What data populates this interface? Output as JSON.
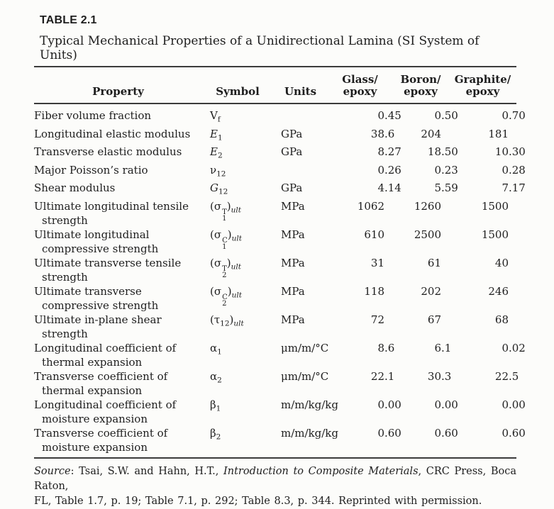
{
  "table_label": "TABLE 2.1",
  "table_title": "Typical Mechanical Properties of a Unidirectional Lamina (SI System of Units)",
  "columns": {
    "property": "Property",
    "symbol": "Symbol",
    "units": "Units",
    "materials": [
      [
        "Glass/",
        "epoxy"
      ],
      [
        "Boron/",
        "epoxy"
      ],
      [
        "Graphite/",
        "epoxy"
      ]
    ]
  },
  "rows": [
    {
      "property": [
        "Fiber volume fraction"
      ],
      "symbol": {
        "base": "V",
        "sub": "f"
      },
      "units": "",
      "values": [
        "0.45",
        "0.50",
        "0.70"
      ]
    },
    {
      "property": [
        "Longitudinal elastic modulus"
      ],
      "symbol": {
        "base": "E",
        "italic": true,
        "sub": "1"
      },
      "units": "GPa",
      "values": [
        "38.6",
        "204",
        "181"
      ]
    },
    {
      "property": [
        "Transverse elastic modulus"
      ],
      "symbol": {
        "base": "E",
        "italic": true,
        "sub": "2"
      },
      "units": "GPa",
      "values": [
        "8.27",
        "18.50",
        "10.30"
      ]
    },
    {
      "property": [
        "Major Poisson’s ratio"
      ],
      "symbol": {
        "base": "ν",
        "sub": "12"
      },
      "units": "",
      "values": [
        "0.26",
        "0.23",
        "0.28"
      ]
    },
    {
      "property": [
        "Shear modulus"
      ],
      "symbol": {
        "base": "G",
        "italic": true,
        "sub": "12"
      },
      "units": "GPa",
      "values": [
        "4.14",
        "5.59",
        "7.17"
      ]
    },
    {
      "property": [
        "Ultimate longitudinal tensile",
        "strength"
      ],
      "symbol": {
        "pre": "(",
        "base": "σ",
        "sub": "1",
        "sup": "T",
        "post": ")",
        "post_sub": "ult"
      },
      "units": "MPa",
      "values": [
        "1062",
        "1260",
        "1500"
      ]
    },
    {
      "property": [
        "Ultimate longitudinal",
        "compressive strength"
      ],
      "symbol": {
        "pre": "(",
        "base": "σ",
        "sub": "1",
        "sup": "C",
        "post": ")",
        "post_sub": "ult"
      },
      "units": "MPa",
      "values": [
        "610",
        "2500",
        "1500"
      ]
    },
    {
      "property": [
        "Ultimate transverse tensile",
        "strength"
      ],
      "symbol": {
        "pre": "(",
        "base": "σ",
        "sub": "2",
        "sup": "T",
        "post": ")",
        "post_sub": "ult"
      },
      "units": "MPa",
      "values": [
        "31",
        "61",
        "40"
      ]
    },
    {
      "property": [
        "Ultimate transverse",
        "compressive strength"
      ],
      "symbol": {
        "pre": "(",
        "base": "σ",
        "sub": "2",
        "sup": "C",
        "post": ")",
        "post_sub": "ult"
      },
      "units": "MPa",
      "values": [
        "118",
        "202",
        "246"
      ]
    },
    {
      "property": [
        "Ultimate in-plane shear",
        "strength"
      ],
      "symbol": {
        "pre": "(",
        "base": "τ",
        "sub": "12",
        "post": ")",
        "post_sub": "ult"
      },
      "units": "MPa",
      "values": [
        "72",
        "67",
        "68"
      ]
    },
    {
      "property": [
        "Longitudinal coefficient of",
        "thermal expansion"
      ],
      "symbol": {
        "base": "α",
        "sub": "1"
      },
      "units": "μm/m/°C",
      "values": [
        "8.6",
        "6.1",
        "0.02"
      ]
    },
    {
      "property": [
        "Transverse coefficient of",
        "thermal expansion"
      ],
      "symbol": {
        "base": "α",
        "sub": "2"
      },
      "units": "μm/m/°C",
      "values": [
        "22.1",
        "30.3",
        "22.5"
      ]
    },
    {
      "property": [
        "Longitudinal coefficient of",
        "moisture expansion"
      ],
      "symbol": {
        "base": "β",
        "sub": "1"
      },
      "units": "m/m/kg/kg",
      "values": [
        "0.00",
        "0.00",
        "0.00"
      ]
    },
    {
      "property": [
        "Transverse coefficient of",
        "moisture expansion"
      ],
      "symbol": {
        "base": "β",
        "sub": "2"
      },
      "units": "m/m/kg/kg",
      "values": [
        "0.60",
        "0.60",
        "0.60"
      ]
    }
  ],
  "source": {
    "line1": [
      {
        "text": "Source",
        "italic": true
      },
      {
        "text": ": Tsai, S.W. and Hahn, H.T., ",
        "italic": false
      },
      {
        "text": "Introduction to Composite Materials",
        "italic": true
      },
      {
        "text": ", CRC Press, Boca Raton,",
        "italic": false
      }
    ],
    "line2": "FL, Table 1.7, p. 19; Table 7.1, p. 292; Table 8.3, p. 344. Reprinted with permission."
  }
}
